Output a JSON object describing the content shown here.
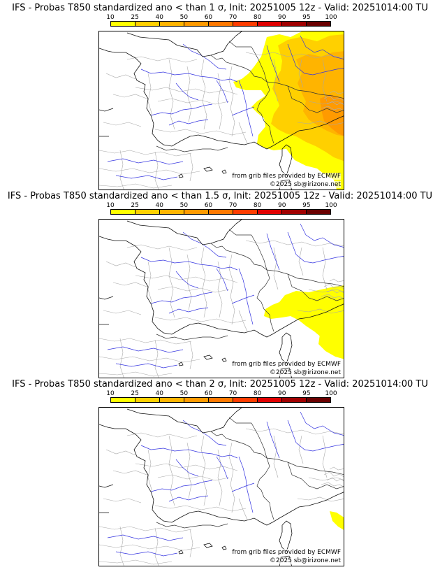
{
  "colorbar": {
    "ticks": [
      "10",
      "25",
      "40",
      "50",
      "60",
      "70",
      "80",
      "90",
      "95",
      "100"
    ],
    "colors": [
      "#ffff00",
      "#ffd000",
      "#ffb400",
      "#ff9a00",
      "#ff7800",
      "#ff3c00",
      "#e00000",
      "#a00000",
      "#6a0000"
    ]
  },
  "panels": [
    {
      "title": "IFS - Probas T850  standardized ano < than 1 σ, Init: 20251005 12z - Valid: 20251014:00 TU",
      "credit_grib": "from grib files provided by ECMWF",
      "credit_copy": "©2025 sb@irizone.net",
      "field": {
        "threshold_sigma": 1,
        "coverage": "wide"
      }
    },
    {
      "title": "IFS - Probas T850  standardized ano < than 1.5 σ, Init: 20251005 12z - Valid: 20251014:00 TU",
      "credit_grib": "from grib files provided by ECMWF",
      "credit_copy": "©2025 sb@irizone.net",
      "field": {
        "threshold_sigma": 1.5,
        "coverage": "medium"
      }
    },
    {
      "title": "IFS - Probas T850  standardized ano < than 2 σ, Init: 20251005 12z - Valid: 20251014:00 TU",
      "credit_grib": "from grib files provided by ECMWF",
      "credit_copy": "©2025 sb@irizone.net",
      "field": {
        "threshold_sigma": 2,
        "coverage": "small"
      }
    }
  ]
}
